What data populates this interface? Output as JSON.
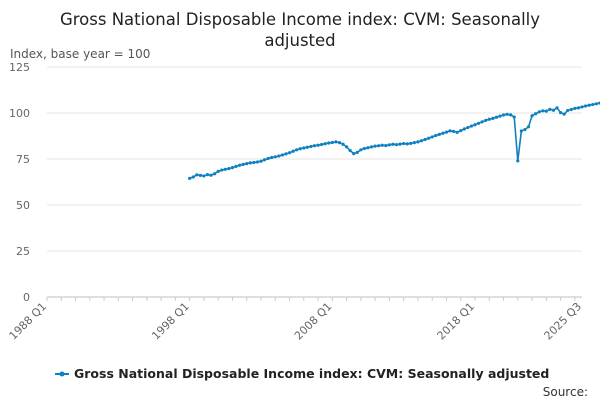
{
  "chart_data": {
    "type": "line",
    "title_lines": [
      "Gross National Disposable Income index: CVM: Seasonally",
      "adjusted"
    ],
    "ylabel": "Index, base year = 100",
    "xlabel": "",
    "ylim": [
      0,
      125
    ],
    "yticks": [
      0,
      25,
      50,
      75,
      100,
      125
    ],
    "x_range": [
      "1988 Q1",
      "2025 Q3"
    ],
    "xticks": [
      "1988 Q1",
      "1998 Q1",
      "2008 Q1",
      "2018 Q1",
      "2025 Q3"
    ],
    "grid": "horizontal",
    "legend_position": "bottom",
    "source_label": "Source:",
    "series": [
      {
        "name": "Gross National Disposable Income index: CVM: Seasonally adjusted",
        "color": "#0F81C1",
        "start": "1998 Q1",
        "values": [
          64.5,
          65.2,
          66.4,
          66.1,
          65.8,
          66.5,
          66.2,
          67.0,
          68.3,
          69.0,
          69.4,
          69.8,
          70.3,
          71.0,
          71.6,
          72.1,
          72.5,
          72.9,
          73.1,
          73.4,
          73.8,
          74.6,
          75.3,
          75.8,
          76.2,
          76.6,
          77.2,
          77.8,
          78.4,
          79.2,
          80.0,
          80.6,
          81.0,
          81.4,
          81.8,
          82.2,
          82.5,
          82.9,
          83.3,
          83.7,
          84.0,
          84.3,
          83.9,
          83.0,
          81.6,
          79.6,
          77.9,
          78.6,
          80.0,
          80.7,
          81.1,
          81.6,
          82.0,
          82.2,
          82.5,
          82.3,
          82.7,
          83.0,
          82.8,
          83.1,
          83.4,
          83.2,
          83.5,
          83.9,
          84.3,
          84.9,
          85.6,
          86.3,
          87.0,
          87.8,
          88.4,
          89.0,
          89.6,
          90.3,
          90.0,
          89.5,
          90.4,
          91.3,
          92.1,
          92.9,
          93.6,
          94.4,
          95.2,
          96.0,
          96.6,
          97.1,
          97.7,
          98.3,
          98.9,
          99.3,
          99.0,
          97.8,
          74.0,
          90.2,
          91.0,
          92.5,
          98.5,
          99.6,
          100.6,
          101.2,
          101.0,
          102.0,
          101.5,
          102.8,
          100.2,
          99.4,
          101.4,
          101.9,
          102.5,
          102.8,
          103.3,
          103.8,
          104.2,
          104.6,
          105.0,
          105.4
        ]
      }
    ]
  }
}
